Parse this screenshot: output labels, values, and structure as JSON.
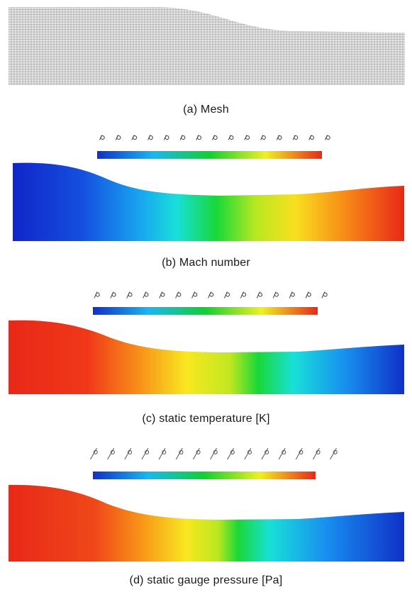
{
  "captions": {
    "a": "(a) Mesh",
    "b": "(b) Mach number",
    "c": "(c) static temperature [K]",
    "d": "(d) static gauge pressure [Pa]"
  },
  "panels": [
    {
      "id": "mach",
      "field_direction": "low-to-high",
      "colormap": "rainbow (blue to red)",
      "tick_count": 15
    },
    {
      "id": "temperature",
      "field_direction": "high-to-low",
      "colormap": "rainbow (blue to red)",
      "tick_count": 15
    },
    {
      "id": "pressure",
      "field_direction": "high-to-low",
      "colormap": "rainbow (blue to red)",
      "tick_count": 15
    }
  ],
  "colors": {
    "blue": "#1030c8",
    "cyan": "#18d8ee",
    "green": "#10d030",
    "yellow": "#f0f020",
    "red": "#e82818",
    "mesh": "#9a9a9a"
  }
}
